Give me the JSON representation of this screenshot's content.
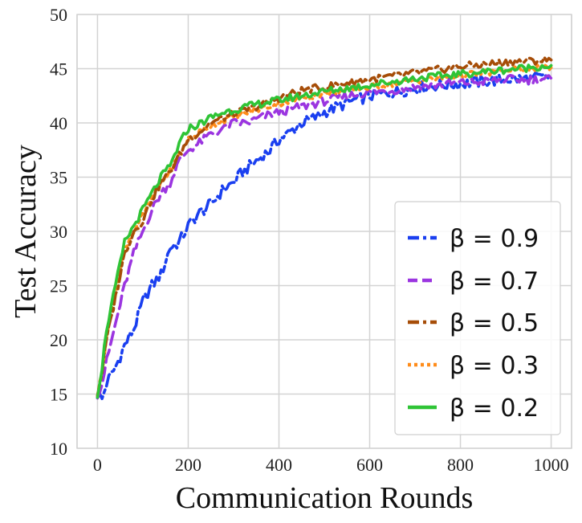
{
  "chart_data": {
    "type": "line",
    "xlabel": "Communication Rounds",
    "ylabel": "Test Accuracy",
    "xlim": [
      -45,
      1045
    ],
    "ylim": [
      10,
      50
    ],
    "xticks": [
      0,
      200,
      400,
      600,
      800,
      1000
    ],
    "yticks": [
      10,
      15,
      20,
      25,
      30,
      35,
      40,
      45,
      50
    ],
    "grid": true,
    "legend_position": "lower-right",
    "series": [
      {
        "name": "β = 0.9",
        "legend_label": "β = 0.9",
        "color": "#1a3ff0",
        "style": "dashdot",
        "x": [
          0,
          10,
          20,
          40,
          60,
          80,
          100,
          120,
          140,
          160,
          180,
          200,
          220,
          250,
          280,
          300,
          320,
          350,
          380,
          400,
          420,
          450,
          480,
          500,
          530,
          560,
          600,
          650,
          700,
          750,
          800,
          850,
          900,
          950,
          1000
        ],
        "y": [
          15.0,
          14.5,
          16.0,
          17.5,
          19.5,
          21.0,
          23.5,
          25.0,
          26.0,
          28.5,
          29.0,
          30.5,
          31.5,
          32.5,
          34.0,
          34.5,
          35.5,
          36.5,
          37.5,
          38.5,
          39.0,
          40.0,
          40.5,
          41.0,
          41.5,
          42.0,
          42.5,
          42.8,
          43.2,
          43.5,
          43.6,
          43.8,
          44.0,
          44.1,
          44.2
        ]
      },
      {
        "name": "β = 0.7",
        "legend_label": "β = 0.7",
        "color": "#9b35e0",
        "style": "dashed",
        "x": [
          0,
          10,
          20,
          40,
          60,
          80,
          100,
          120,
          140,
          160,
          180,
          200,
          220,
          250,
          280,
          300,
          330,
          360,
          400,
          450,
          500,
          550,
          600,
          650,
          700,
          750,
          800,
          850,
          900,
          950,
          1000
        ],
        "y": [
          15.0,
          16.0,
          18.0,
          21.5,
          25.0,
          28.0,
          30.0,
          32.0,
          33.5,
          34.5,
          36.5,
          37.5,
          38.0,
          39.0,
          39.5,
          40.0,
          40.0,
          40.5,
          41.0,
          41.5,
          42.0,
          42.5,
          42.8,
          43.0,
          43.3,
          43.5,
          43.7,
          43.8,
          44.0,
          44.0,
          44.1
        ]
      },
      {
        "name": "β = 0.5",
        "legend_label": "β = 0.5",
        "color": "#a64d08",
        "style": "dashdot",
        "x": [
          0,
          10,
          20,
          40,
          60,
          80,
          100,
          120,
          140,
          160,
          180,
          200,
          220,
          250,
          280,
          300,
          350,
          400,
          450,
          500,
          550,
          600,
          650,
          700,
          750,
          800,
          850,
          900,
          950,
          1000
        ],
        "y": [
          15.0,
          17.0,
          20.0,
          24.0,
          28.0,
          30.0,
          31.0,
          33.0,
          34.5,
          35.5,
          37.0,
          38.5,
          39.0,
          40.0,
          40.5,
          40.8,
          41.5,
          42.3,
          43.0,
          43.3,
          43.7,
          44.0,
          44.3,
          44.6,
          44.9,
          45.2,
          45.4,
          45.6,
          45.7,
          45.8
        ]
      },
      {
        "name": "β = 0.3",
        "legend_label": "β = 0.3",
        "color": "#ff8c1a",
        "style": "dotted",
        "x": [
          0,
          10,
          20,
          40,
          60,
          80,
          100,
          120,
          140,
          160,
          180,
          200,
          220,
          250,
          280,
          300,
          350,
          400,
          450,
          500,
          550,
          600,
          650,
          700,
          750,
          800,
          850,
          900,
          950,
          1000
        ],
        "y": [
          15.0,
          17.0,
          20.5,
          24.5,
          28.5,
          30.0,
          31.5,
          33.0,
          34.5,
          35.5,
          37.0,
          38.5,
          39.0,
          39.8,
          40.3,
          40.6,
          41.2,
          41.8,
          42.3,
          42.7,
          43.0,
          43.3,
          43.6,
          43.9,
          44.1,
          44.4,
          44.6,
          44.8,
          45.0,
          45.1
        ]
      },
      {
        "name": "β = 0.2",
        "legend_label": "β = 0.2",
        "color": "#2fc436",
        "style": "solid",
        "x": [
          0,
          10,
          20,
          40,
          60,
          80,
          100,
          120,
          140,
          160,
          180,
          200,
          220,
          250,
          280,
          300,
          350,
          400,
          450,
          500,
          550,
          600,
          650,
          700,
          750,
          800,
          850,
          900,
          950,
          1000
        ],
        "y": [
          15.0,
          17.5,
          21.0,
          25.0,
          29.0,
          30.5,
          32.0,
          33.5,
          35.0,
          36.0,
          38.0,
          39.5,
          39.8,
          40.5,
          41.0,
          41.2,
          41.7,
          42.1,
          42.5,
          42.9,
          43.2,
          43.5,
          43.8,
          44.1,
          44.3,
          44.5,
          44.7,
          44.9,
          45.1,
          45.3
        ]
      }
    ]
  }
}
